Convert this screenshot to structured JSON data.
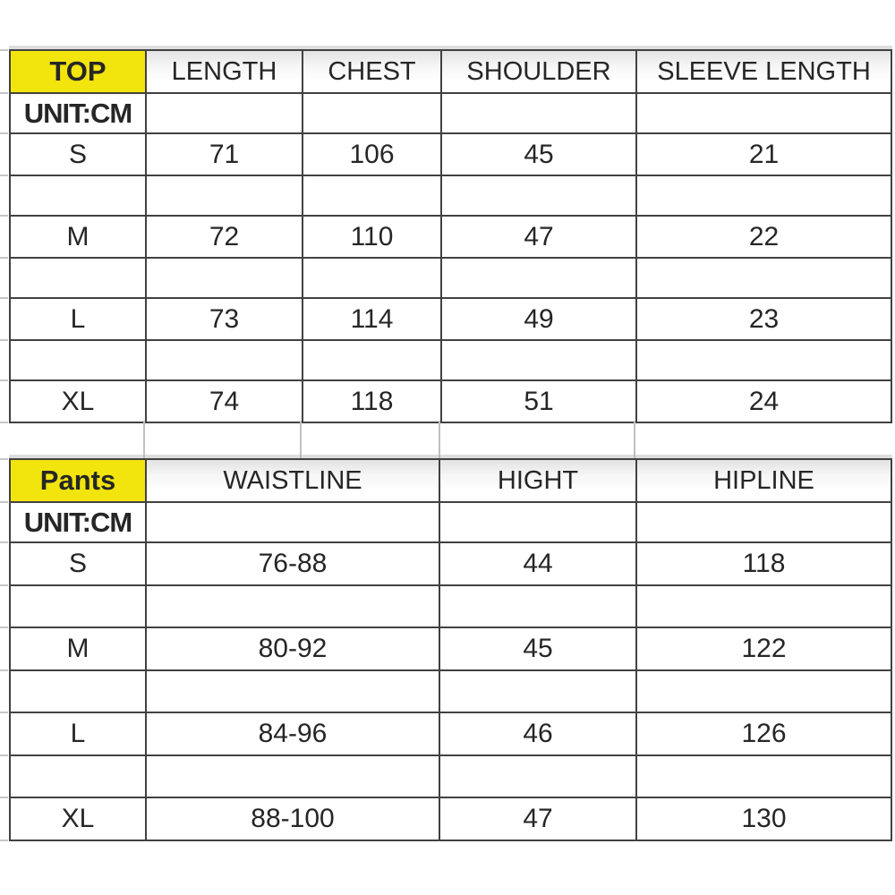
{
  "colors": {
    "highlight_yellow": "#f2e40d",
    "border_dark": "#414141",
    "text": "#262626",
    "faint_grid": "#c0c0c0",
    "background": "#ffffff"
  },
  "chart_data": [
    {
      "type": "table",
      "title": "TOP",
      "unit_label": "UNIT:CM",
      "columns": [
        "TOP",
        "LENGTH",
        "CHEST",
        "SHOULDER",
        "SLEEVE LENGTH"
      ],
      "rows": [
        [
          "S",
          "71",
          "106",
          "45",
          "21"
        ],
        [
          "M",
          "72",
          "110",
          "47",
          "22"
        ],
        [
          "L",
          "73",
          "114",
          "49",
          "23"
        ],
        [
          "XL",
          "74",
          "118",
          "51",
          "24"
        ]
      ]
    },
    {
      "type": "table",
      "title": "Pants",
      "unit_label": "UNIT:CM",
      "columns": [
        "Pants",
        "WAISTLINE",
        "HIGHT",
        "HIPLINE"
      ],
      "rows": [
        [
          "S",
          "76-88",
          "44",
          "118"
        ],
        [
          "M",
          "80-92",
          "45",
          "122"
        ],
        [
          "L",
          "84-96",
          "46",
          "126"
        ],
        [
          "XL",
          "88-100",
          "47",
          "130"
        ]
      ]
    }
  ]
}
